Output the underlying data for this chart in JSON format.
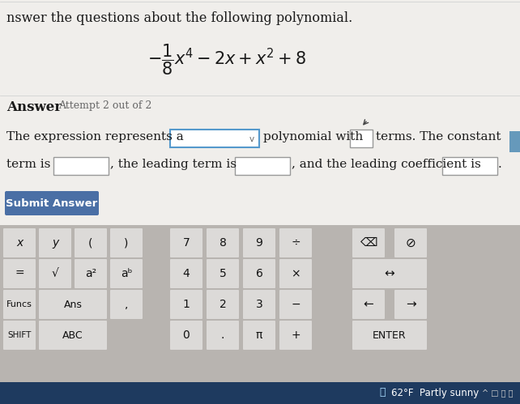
{
  "bg_color_top": "#f0eeeb",
  "bg_color_kb": "#b8b4b0",
  "title_text": "nswer the questions about the following polynomial.",
  "answer_label": "Answer",
  "attempt_text": "Attempt 2 out of 2",
  "sentence_part1": "The expression represents a",
  "sentence_part2": "polynomial with",
  "sentence_part3": "terms. The constant",
  "sentence_part4": "term is",
  "sentence_part5": ", the leading term is",
  "sentence_part6": ", and the leading coefficient is",
  "sentence_part7": ".",
  "submit_btn_text": "Submit Answer",
  "submit_btn_color": "#4a6fa5",
  "submit_btn_text_color": "#ffffff",
  "white": "#ffffff",
  "dark_text": "#1a1a1a",
  "box_border_normal": "#999999",
  "box_border_blue": "#5599cc",
  "key_bg": "#dcdad8",
  "key_bg_dark": "#c8c5c2",
  "taskbar_color": "#1e3a5f",
  "status_bar_text": "62°F  Partly sunny",
  "cursor_color": "#555555"
}
